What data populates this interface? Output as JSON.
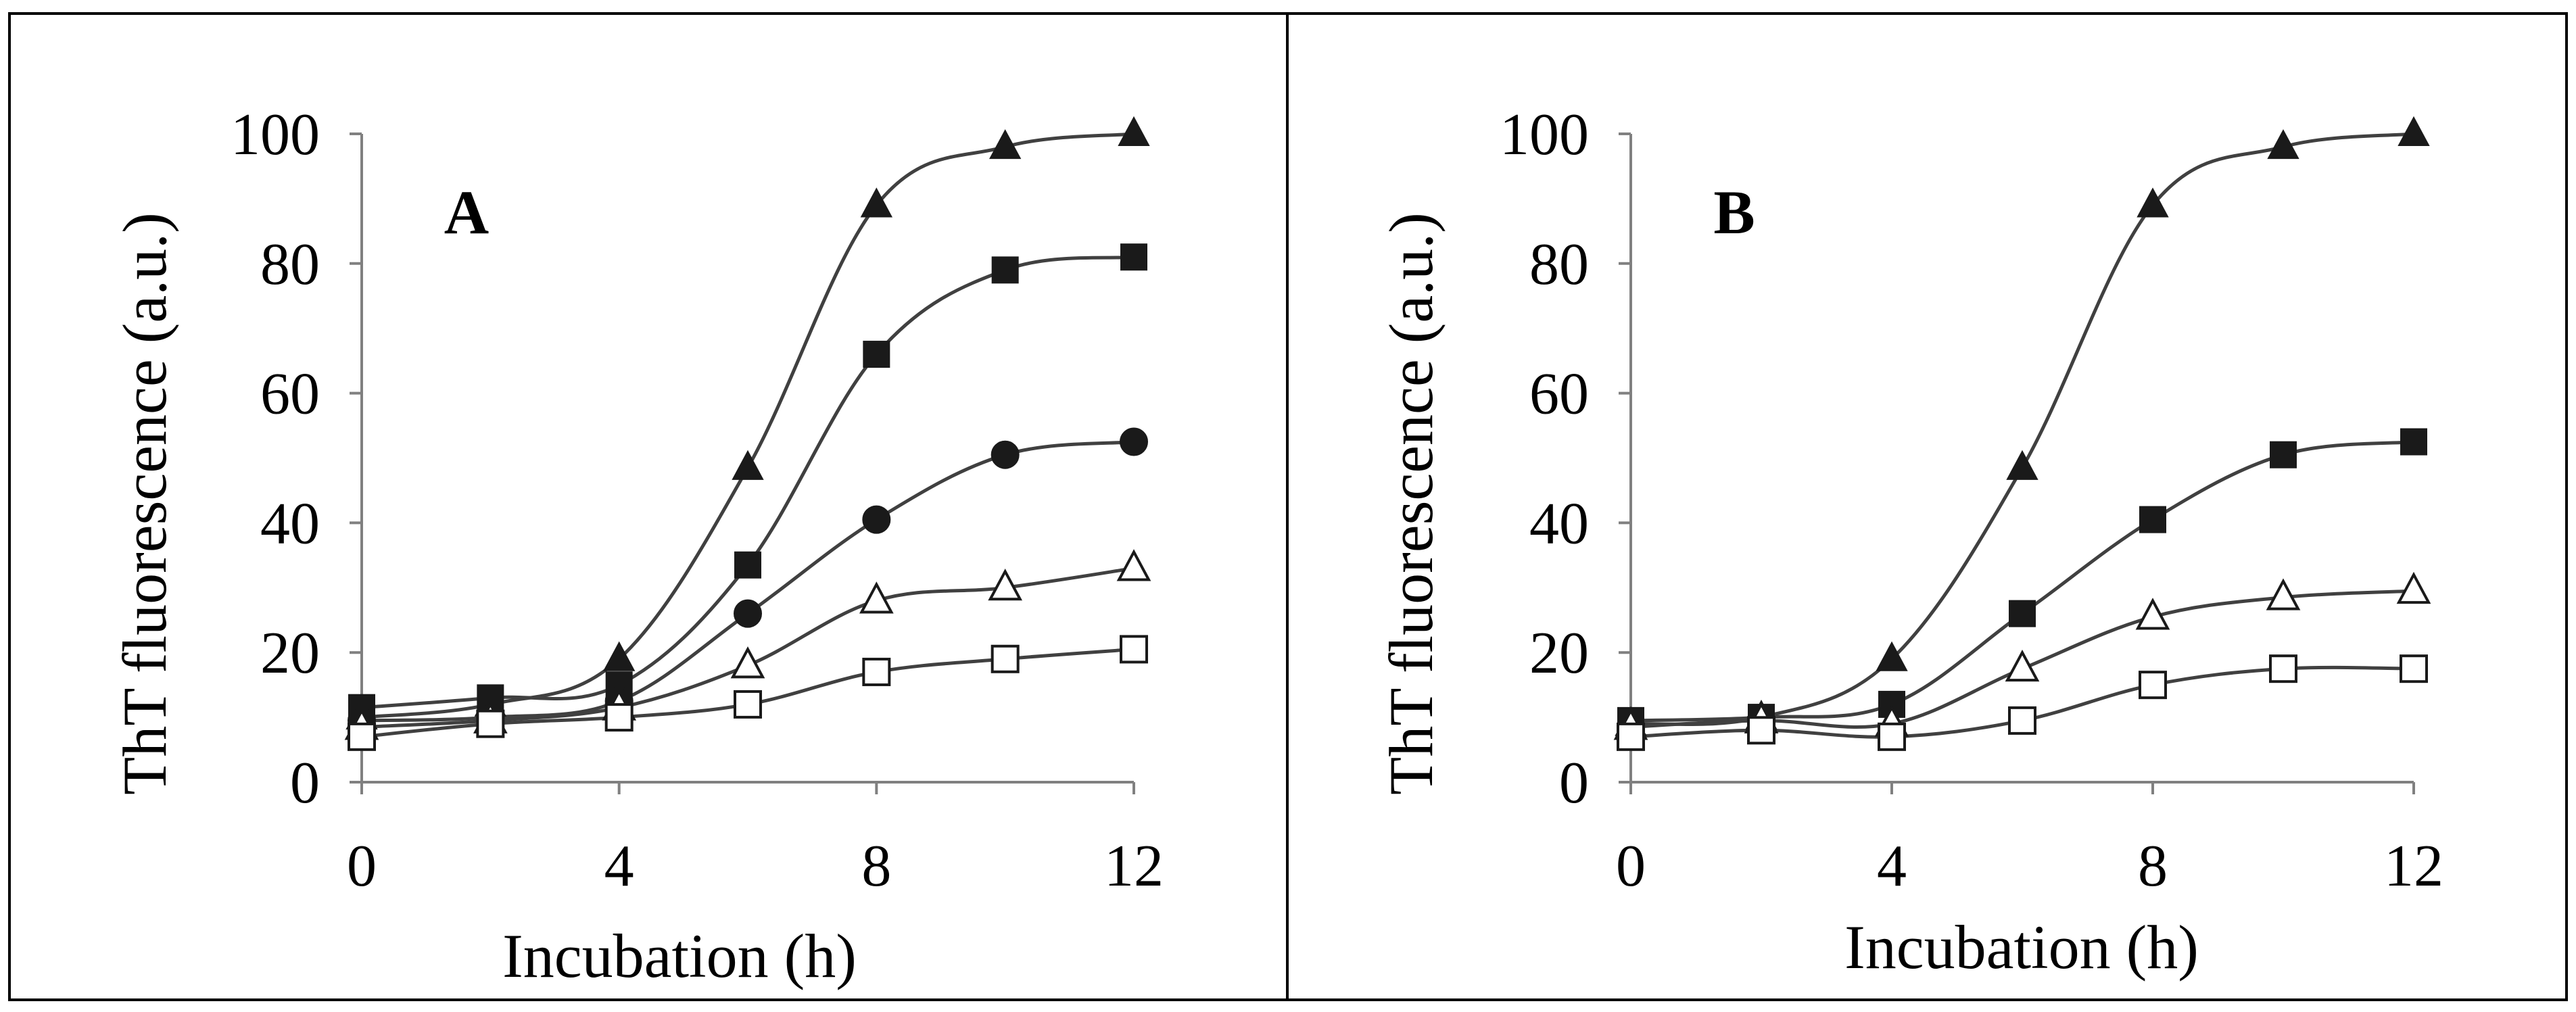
{
  "chart_data": [
    {
      "type": "line",
      "panel_label": "A",
      "xlabel": "Incubation (h)",
      "ylabel": "ThT fluorescence (a.u.)",
      "xlim": [
        0,
        12
      ],
      "ylim": [
        0,
        100
      ],
      "x_ticks": [
        0,
        4,
        8,
        12
      ],
      "y_ticks": [
        0,
        20,
        40,
        60,
        80,
        100
      ],
      "x": [
        0,
        2,
        4,
        6,
        8,
        10,
        12
      ],
      "series": [
        {
          "name": "filled-triangle",
          "marker": "triangle",
          "filled": true,
          "values": [
            10,
            12,
            19,
            48.5,
            89,
            98,
            100
          ]
        },
        {
          "name": "filled-square",
          "marker": "square",
          "filled": true,
          "values": [
            11.5,
            13,
            15,
            33.5,
            66,
            79,
            81
          ]
        },
        {
          "name": "filled-circle",
          "marker": "circle",
          "filled": true,
          "values": [
            9.5,
            10,
            12.5,
            26,
            40.5,
            50.5,
            52.5
          ]
        },
        {
          "name": "open-triangle",
          "marker": "triangle",
          "filled": false,
          "values": [
            8.5,
            9.5,
            11.5,
            18,
            28,
            30,
            33
          ]
        },
        {
          "name": "open-square",
          "marker": "square",
          "filled": false,
          "values": [
            7,
            9,
            10,
            12,
            17,
            19,
            20.5
          ]
        }
      ]
    },
    {
      "type": "line",
      "panel_label": "B",
      "xlabel": "Incubation (h)",
      "ylabel": "ThT fluorescence (a.u.)",
      "xlim": [
        0,
        12
      ],
      "ylim": [
        0,
        100
      ],
      "x_ticks": [
        0,
        4,
        8,
        12
      ],
      "y_ticks": [
        0,
        20,
        40,
        60,
        80,
        100
      ],
      "x": [
        0,
        2,
        4,
        6,
        8,
        10,
        12
      ],
      "series": [
        {
          "name": "filled-triangle",
          "marker": "triangle",
          "filled": true,
          "values": [
            9,
            10,
            19,
            48.5,
            89,
            98,
            100
          ]
        },
        {
          "name": "filled-square",
          "marker": "square",
          "filled": true,
          "values": [
            9.5,
            10,
            12,
            26,
            40.5,
            50.5,
            52.5
          ]
        },
        {
          "name": "open-triangle",
          "marker": "triangle",
          "filled": false,
          "values": [
            8.5,
            9.5,
            9,
            17.5,
            25.5,
            28.5,
            29.5
          ]
        },
        {
          "name": "open-square",
          "marker": "square",
          "filled": false,
          "values": [
            7,
            8,
            7,
            9.5,
            15,
            17.5,
            17.5
          ]
        }
      ]
    }
  ],
  "colors": {
    "line": "#404040",
    "marker": "#1a1a1a",
    "axis": "#808080",
    "frame": "#000000",
    "background": "#ffffff"
  }
}
